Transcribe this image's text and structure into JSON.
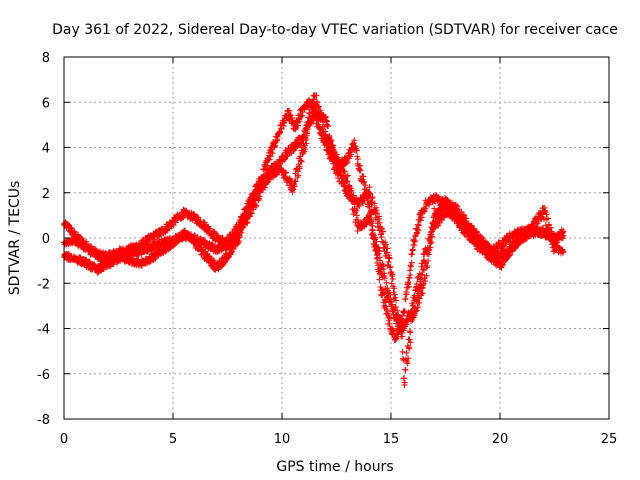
{
  "chart_data": {
    "type": "scatter",
    "title": "Day 361 of 2022, Sidereal Day-to-day VTEC variation (SDTVAR) for receiver cace",
    "xlabel": "GPS time / hours",
    "ylabel": "SDTVAR / TECUs",
    "xlim": [
      0,
      25
    ],
    "ylim": [
      -8,
      8
    ],
    "xticks": [
      "0",
      "5",
      "10",
      "15",
      "20",
      "25"
    ],
    "yticks": [
      "8",
      "6",
      "4",
      "2",
      "0",
      "-2",
      "-4",
      "-6",
      "-8"
    ],
    "xtick_values": [
      0,
      5,
      10,
      15,
      20,
      25
    ],
    "ytick_values": [
      8,
      6,
      4,
      2,
      0,
      -2,
      -4,
      -6,
      -8
    ],
    "grid": true,
    "marker": "plus",
    "color": "#ff0000",
    "series": [
      {
        "x": [
          0,
          0.2,
          0.5,
          1.0,
          1.5,
          2.0,
          2.5,
          3.0,
          3.5,
          4.0,
          4.5,
          5.0,
          5.5,
          6.0,
          6.5,
          7.0,
          7.5,
          8.0,
          8.5,
          9.0,
          9.5,
          9.8,
          10.0,
          10.3,
          10.6,
          11.0,
          11.3,
          11.6,
          12.0,
          12.3,
          12.6,
          13.0,
          13.3,
          13.6,
          14.0,
          14.3,
          14.6,
          15.0,
          15.2,
          15.4,
          15.6,
          15.8,
          16.0,
          16.3,
          16.6,
          17.0,
          17.5,
          18.0,
          18.5,
          19.0,
          19.5,
          20.0,
          20.5,
          21.0,
          21.5,
          22.0,
          22.5,
          22.9
        ],
        "y": [
          0.6,
          0.5,
          0.1,
          -0.3,
          -0.7,
          -0.8,
          -0.6,
          -0.5,
          -0.3,
          0.0,
          0.3,
          0.7,
          1.1,
          0.9,
          0.5,
          0.0,
          -0.2,
          0.5,
          1.5,
          2.5,
          3.8,
          4.5,
          5.0,
          5.5,
          4.8,
          5.8,
          6.0,
          5.5,
          5.2,
          4.0,
          3.2,
          3.5,
          4.2,
          3.0,
          1.5,
          -0.5,
          -2.5,
          -4.0,
          -4.4,
          -4.0,
          -3.3,
          -2.0,
          -0.5,
          0.8,
          1.5,
          1.8,
          1.5,
          0.8,
          0.2,
          -0.4,
          -0.7,
          -0.3,
          0.1,
          0.3,
          0.4,
          0.2,
          0.0,
          0.1
        ]
      },
      {
        "x": [
          0,
          0.5,
          1.0,
          1.5,
          2.0,
          2.5,
          3.0,
          3.5,
          4.0,
          4.5,
          5.0,
          5.5,
          6.0,
          6.5,
          7.0,
          7.5,
          8.0,
          8.5,
          9.0,
          9.5,
          10.0,
          10.5,
          11.0,
          11.5,
          12.0,
          12.5,
          13.0,
          13.5,
          14.0,
          14.5,
          15.0,
          15.3,
          15.6,
          16.0,
          16.5,
          17.0,
          17.5,
          18.0,
          18.5,
          19.0,
          19.5,
          20.0,
          20.5,
          21.0,
          21.5,
          22.0,
          22.5,
          22.9
        ],
        "y": [
          -0.2,
          -0.1,
          -0.4,
          -0.8,
          -1.0,
          -0.8,
          -0.7,
          -0.6,
          -0.4,
          -0.2,
          -0.1,
          0.1,
          0.0,
          -0.3,
          -0.5,
          -0.3,
          0.3,
          1.0,
          2.0,
          3.0,
          3.5,
          4.0,
          4.5,
          5.5,
          4.2,
          3.0,
          2.0,
          1.5,
          2.0,
          0.5,
          -1.5,
          -3.5,
          -4.0,
          -3.0,
          -1.0,
          0.5,
          1.2,
          1.0,
          0.5,
          0.0,
          -0.5,
          -0.8,
          -0.4,
          0.0,
          0.2,
          0.3,
          -0.2,
          0.3
        ]
      },
      {
        "x": [
          0,
          0.5,
          1.0,
          1.5,
          2.0,
          2.5,
          3.0,
          3.5,
          4.0,
          4.5,
          5.0,
          5.5,
          6.0,
          6.5,
          7.0,
          7.5,
          8.0,
          8.5,
          9.0,
          9.5,
          10.0,
          10.5,
          11.0,
          11.5,
          12.0,
          12.5,
          13.0,
          13.5,
          14.0,
          14.5,
          15.0,
          15.5,
          15.6,
          16.0,
          16.5,
          17.0,
          17.5,
          18.0,
          18.5,
          19.0,
          19.5,
          20.0,
          20.5,
          21.0,
          21.5,
          22.0,
          22.5,
          22.9
        ],
        "y": [
          -0.8,
          -0.9,
          -1.1,
          -1.4,
          -1.2,
          -0.9,
          -1.0,
          -1.1,
          -0.9,
          -0.6,
          -0.2,
          0.2,
          -0.2,
          -0.8,
          -1.3,
          -0.8,
          0.0,
          1.5,
          2.3,
          2.8,
          3.0,
          2.2,
          4.0,
          6.3,
          4.5,
          3.5,
          2.5,
          0.5,
          0.8,
          -1.0,
          -3.0,
          -4.2,
          -6.2,
          -3.5,
          -2.0,
          1.0,
          1.6,
          1.3,
          0.6,
          0.0,
          -0.8,
          -1.2,
          -0.5,
          0.0,
          0.5,
          1.2,
          -0.4,
          -0.6
        ]
      }
    ]
  }
}
